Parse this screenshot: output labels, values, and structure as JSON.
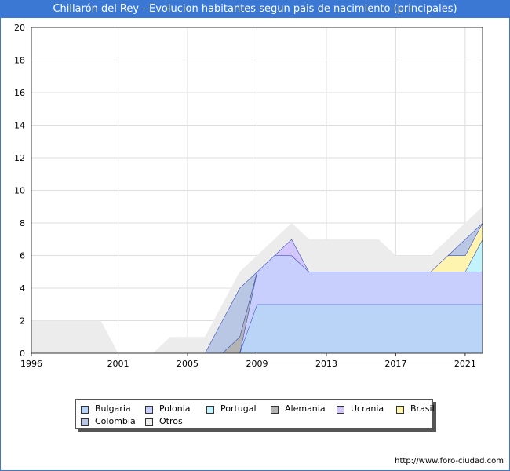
{
  "page": {
    "title": "Chillarón del Rey - Evolucion habitantes segun pais de nacimiento (principales)",
    "footer": "http://www.foro-ciudad.com"
  },
  "chart_data": {
    "type": "area",
    "stacked": true,
    "title": "Chillarón del Rey - Evolucion habitantes segun pais de nacimiento (principales)",
    "xlim": [
      1996,
      2022
    ],
    "ylim": [
      0,
      20
    ],
    "x_ticks": [
      1996,
      2001,
      2005,
      2009,
      2013,
      2017,
      2021
    ],
    "y_ticks": [
      0,
      2,
      4,
      6,
      8,
      10,
      12,
      14,
      16,
      18,
      20
    ],
    "grid": true,
    "legend_position": "bottom",
    "x": [
      1996,
      1997,
      1998,
      1999,
      2000,
      2001,
      2002,
      2003,
      2004,
      2005,
      2006,
      2007,
      2008,
      2009,
      2010,
      2011,
      2012,
      2013,
      2014,
      2015,
      2016,
      2017,
      2018,
      2019,
      2020,
      2021,
      2022
    ],
    "series": [
      {
        "name": "Bulgaria",
        "color": "#b9d4f7",
        "values": [
          0,
          0,
          0,
          0,
          0,
          0,
          0,
          0,
          0,
          0,
          0,
          0,
          0,
          3,
          3,
          3,
          3,
          3,
          3,
          3,
          3,
          3,
          3,
          3,
          3,
          3,
          3
        ]
      },
      {
        "name": "Polonia",
        "color": "#c8cffc",
        "values": [
          0,
          0,
          0,
          0,
          0,
          0,
          0,
          0,
          0,
          0,
          0,
          0,
          0,
          2,
          3,
          3,
          2,
          2,
          2,
          2,
          2,
          2,
          2,
          2,
          2,
          2,
          2
        ]
      },
      {
        "name": "Portugal",
        "color": "#c4f4fb",
        "values": [
          0,
          0,
          0,
          0,
          0,
          0,
          0,
          0,
          0,
          0,
          0,
          0,
          0,
          0,
          0,
          0,
          0,
          0,
          0,
          0,
          0,
          0,
          0,
          0,
          0,
          0,
          2
        ]
      },
      {
        "name": "Alemania",
        "color": "#b4b4b4",
        "values": [
          0,
          0,
          0,
          0,
          0,
          0,
          0,
          0,
          0,
          0,
          0,
          0,
          1,
          0,
          0,
          0,
          0,
          0,
          0,
          0,
          0,
          0,
          0,
          0,
          0,
          0,
          0
        ]
      },
      {
        "name": "Ucrania",
        "color": "#d3c6fa",
        "values": [
          0,
          0,
          0,
          0,
          0,
          0,
          0,
          0,
          0,
          0,
          0,
          0,
          0,
          0,
          0,
          1,
          0,
          0,
          0,
          0,
          0,
          0,
          0,
          0,
          0,
          0,
          0
        ]
      },
      {
        "name": "Brasil",
        "color": "#fff3b0",
        "values": [
          0,
          0,
          0,
          0,
          0,
          0,
          0,
          0,
          0,
          0,
          0,
          0,
          0,
          0,
          0,
          0,
          0,
          0,
          0,
          0,
          0,
          0,
          0,
          0,
          1,
          1,
          1
        ]
      },
      {
        "name": "Colombia",
        "color": "#b9c6e4",
        "values": [
          0,
          0,
          0,
          0,
          0,
          0,
          0,
          0,
          0,
          0,
          0,
          2,
          3,
          0,
          0,
          0,
          0,
          0,
          0,
          0,
          0,
          0,
          0,
          0,
          0,
          1,
          0
        ]
      },
      {
        "name": "Otros",
        "color": "#ececec",
        "values": [
          2,
          2,
          2,
          2,
          2,
          0,
          0,
          0,
          1,
          1,
          1,
          1,
          1,
          1,
          1,
          1,
          2,
          2,
          2,
          2,
          2,
          1,
          1,
          1,
          1,
          1,
          1
        ]
      }
    ]
  }
}
